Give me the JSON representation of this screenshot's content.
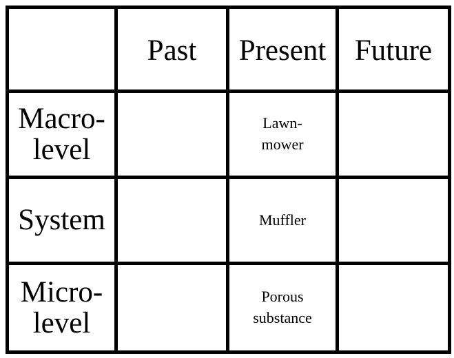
{
  "table": {
    "columns": [
      "",
      "Past",
      "Present",
      "Future"
    ],
    "rows": [
      {
        "label": "Macro-\nlevel",
        "cells": [
          "",
          "Lawn-\nmower",
          ""
        ]
      },
      {
        "label": "System",
        "cells": [
          "",
          "Muffler",
          ""
        ]
      },
      {
        "label": "Micro-\nlevel",
        "cells": [
          "",
          "Porous\nsubstance",
          ""
        ]
      }
    ]
  }
}
